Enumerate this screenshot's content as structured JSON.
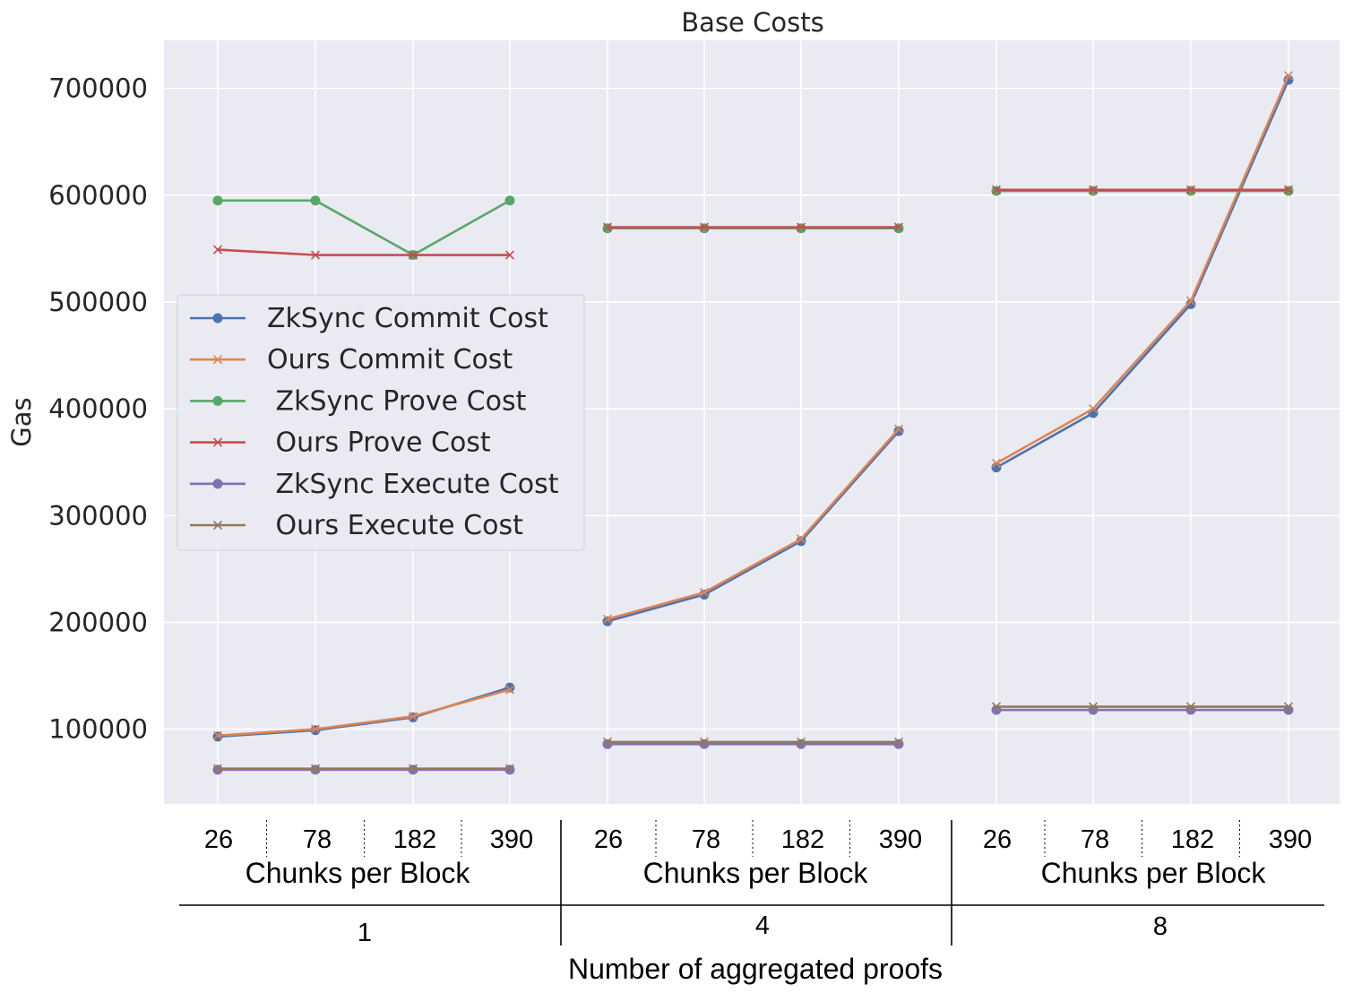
{
  "chart_data": {
    "type": "line",
    "title": "Base Costs",
    "ylabel": "Gas",
    "xlabel": "Number of aggregated proofs",
    "ylim": [
      30000,
      745000
    ],
    "yticks": [
      100000,
      200000,
      300000,
      400000,
      500000,
      600000,
      700000
    ],
    "ytick_labels": [
      "100000",
      "200000",
      "300000",
      "400000",
      "500000",
      "600000",
      "700000"
    ],
    "grid": true,
    "legend_position": "center-left",
    "groups": [
      {
        "label": "1",
        "sublabel": "Chunks per Block",
        "categories": [
          "26",
          "78",
          "182",
          "390"
        ]
      },
      {
        "label": "4",
        "sublabel": "Chunks per Block",
        "categories": [
          "26",
          "78",
          "182",
          "390"
        ]
      },
      {
        "label": "8",
        "sublabel": "Chunks per Block",
        "categories": [
          "26",
          "78",
          "182",
          "390"
        ]
      }
    ],
    "series": [
      {
        "name": "ZkSync Commit Cost",
        "color": "#4c72b0",
        "marker": "circle",
        "groups": [
          [
            93000,
            99000,
            111000,
            139000
          ],
          [
            201000,
            226000,
            276000,
            379000
          ],
          [
            345000,
            396000,
            498000,
            708000
          ]
        ]
      },
      {
        "name": "Ours Commit Cost",
        "color": "#dd8452",
        "marker": "x",
        "groups": [
          [
            94000,
            100000,
            112000,
            137000
          ],
          [
            203000,
            228000,
            278000,
            381000
          ],
          [
            349000,
            400000,
            501000,
            712000
          ]
        ]
      },
      {
        "name": " ZkSync Prove Cost",
        "color": "#55a868",
        "marker": "circle",
        "groups": [
          [
            595000,
            595000,
            544000,
            595000
          ],
          [
            569000,
            569000,
            569000,
            569000
          ],
          [
            604000,
            604000,
            604000,
            604000
          ]
        ]
      },
      {
        "name": " Ours Prove Cost",
        "color": "#c44e52",
        "marker": "x",
        "groups": [
          [
            549000,
            544000,
            544000,
            544000
          ],
          [
            570000,
            570000,
            570000,
            570000
          ],
          [
            605000,
            605000,
            605000,
            605000
          ]
        ]
      },
      {
        "name": " ZkSync Execute Cost",
        "color": "#8172b3",
        "marker": "circle",
        "groups": [
          [
            62000,
            62000,
            62000,
            62000
          ],
          [
            86000,
            86000,
            86000,
            86000
          ],
          [
            118000,
            118000,
            118000,
            118000
          ]
        ]
      },
      {
        "name": " Ours Execute Cost",
        "color": "#937860",
        "marker": "x",
        "groups": [
          [
            63000,
            63000,
            63000,
            63000
          ],
          [
            88000,
            88000,
            88000,
            88000
          ],
          [
            121000,
            121000,
            121000,
            121000
          ]
        ]
      }
    ]
  }
}
